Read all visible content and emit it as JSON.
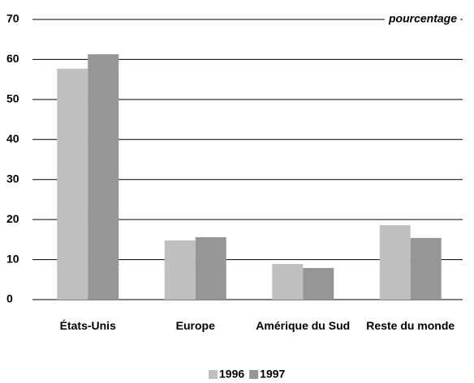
{
  "chart_data": {
    "type": "bar",
    "unit_label": "pourcentage",
    "categories": [
      "États-Unis",
      "Europe",
      "Amérique du Sud",
      "Reste du monde"
    ],
    "series": [
      {
        "name": "1996",
        "color": "#c0c0c0",
        "values": [
          57.7,
          14.8,
          8.9,
          18.6
        ]
      },
      {
        "name": "1997",
        "color": "#969696",
        "values": [
          61.3,
          15.6,
          7.9,
          15.4
        ]
      }
    ],
    "ylim": [
      0,
      70
    ],
    "yticks": [
      0,
      10,
      20,
      30,
      40,
      50,
      60,
      70
    ],
    "grid": true,
    "legend": "bottom"
  }
}
